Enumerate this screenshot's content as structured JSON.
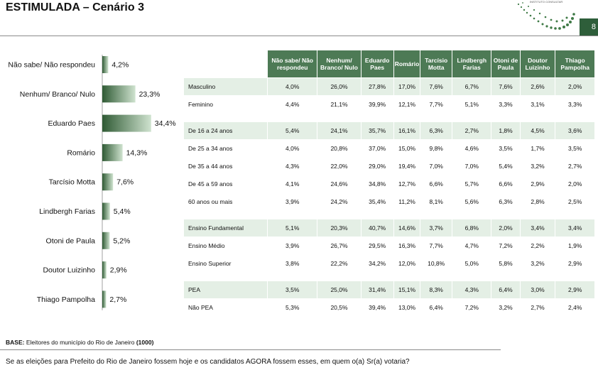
{
  "header": {
    "title": "ESTIMULADA – Cenário 3",
    "page_number": "8",
    "logo_text": "INSTITUTO CONSULTAR"
  },
  "colors": {
    "bar_dark": "#2f5a34",
    "bar_light": "#cfe3cf",
    "header_green": "#4d7a55",
    "row_shade": "#e4efe5"
  },
  "chart_data": {
    "type": "bar",
    "orientation": "horizontal",
    "categories": [
      "Não sabe/ Não respondeu",
      "Nenhum/ Branco/ Nulo",
      "Eduardo Paes",
      "Romário",
      "Tarcísio Motta",
      "Lindbergh Farias",
      "Otoni de Paula",
      "Doutor Luizinho",
      "Thiago Pampolha"
    ],
    "values": [
      4.2,
      23.3,
      34.4,
      14.3,
      7.6,
      5.4,
      5.2,
      2.9,
      2.7
    ],
    "value_labels": [
      "4,2%",
      "23,3%",
      "34,4%",
      "14,3%",
      "7,6%",
      "5,4%",
      "5,2%",
      "2,9%",
      "2,7%"
    ],
    "xlim": [
      0,
      35
    ],
    "grid": false,
    "legend": "none"
  },
  "table": {
    "columns": [
      "Não sabe/ Não respondeu",
      "Nenhum/ Branco/ Nulo",
      "Eduardo Paes",
      "Romário",
      "Tarcísio Motta",
      "Lindbergh Farias",
      "Otoni de Paula",
      "Doutor Luizinho",
      "Thiago Pampolha"
    ],
    "groups": [
      {
        "rows": [
          {
            "label": "Masculino",
            "values": [
              "4,0%",
              "26,0%",
              "27,8%",
              "17,0%",
              "7,6%",
              "6,7%",
              "7,6%",
              "2,6%",
              "2,0%"
            ]
          },
          {
            "label": "Feminino",
            "values": [
              "4,4%",
              "21,1%",
              "39,9%",
              "12,1%",
              "7,7%",
              "5,1%",
              "3,3%",
              "3,1%",
              "3,3%"
            ]
          }
        ]
      },
      {
        "rows": [
          {
            "label": "De 16 a 24 anos",
            "values": [
              "5,4%",
              "24,1%",
              "35,7%",
              "16,1%",
              "6,3%",
              "2,7%",
              "1,8%",
              "4,5%",
              "3,6%"
            ]
          },
          {
            "label": "De 25 a 34 anos",
            "values": [
              "4,0%",
              "20,8%",
              "37,0%",
              "15,0%",
              "9,8%",
              "4,6%",
              "3,5%",
              "1,7%",
              "3,5%"
            ]
          },
          {
            "label": "De 35 a 44 anos",
            "values": [
              "4,3%",
              "22,0%",
              "29,0%",
              "19,4%",
              "7,0%",
              "7,0%",
              "5,4%",
              "3,2%",
              "2,7%"
            ]
          },
          {
            "label": "De 45 a 59 anos",
            "values": [
              "4,1%",
              "24,6%",
              "34,8%",
              "12,7%",
              "6,6%",
              "5,7%",
              "6,6%",
              "2,9%",
              "2,0%"
            ]
          },
          {
            "label": "60 anos ou mais",
            "values": [
              "3,9%",
              "24,2%",
              "35,4%",
              "11,2%",
              "8,1%",
              "5,6%",
              "6,3%",
              "2,8%",
              "2,5%"
            ]
          }
        ]
      },
      {
        "rows": [
          {
            "label": "Ensino Fundamental",
            "values": [
              "5,1%",
              "20,3%",
              "40,7%",
              "14,6%",
              "3,7%",
              "6,8%",
              "2,0%",
              "3,4%",
              "3,4%"
            ]
          },
          {
            "label": "Ensino Médio",
            "values": [
              "3,9%",
              "26,7%",
              "29,5%",
              "16,3%",
              "7,7%",
              "4,7%",
              "7,2%",
              "2,2%",
              "1,9%"
            ]
          },
          {
            "label": "Ensino Superior",
            "values": [
              "3,8%",
              "22,2%",
              "34,2%",
              "12,0%",
              "10,8%",
              "5,0%",
              "5,8%",
              "3,2%",
              "2,9%"
            ]
          }
        ]
      },
      {
        "rows": [
          {
            "label": "PEA",
            "values": [
              "3,5%",
              "25,0%",
              "31,4%",
              "15,1%",
              "8,3%",
              "4,3%",
              "6,4%",
              "3,0%",
              "2,9%"
            ]
          },
          {
            "label": "Não PEA",
            "values": [
              "5,3%",
              "20,5%",
              "39,4%",
              "13,0%",
              "6,4%",
              "7,2%",
              "3,2%",
              "2,7%",
              "2,4%"
            ]
          }
        ]
      }
    ]
  },
  "footer": {
    "base_label": "BASE:",
    "base_text": "Eleitores do município do Rio de Janeiro",
    "base_n": "(1000)",
    "question": "Se as eleições para Prefeito do Rio de Janeiro fossem hoje e os candidatos AGORA fossem esses, em quem o(a) Sr(a) votaria?"
  }
}
